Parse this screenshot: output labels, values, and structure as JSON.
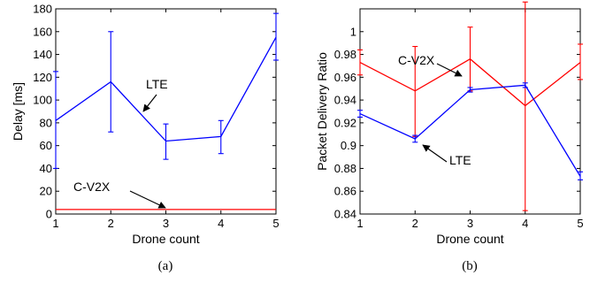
{
  "chart_data": [
    {
      "type": "line",
      "panel_label": "(a)",
      "xlabel": "Drone count",
      "ylabel": "Delay [ms]",
      "x": [
        1,
        2,
        3,
        4,
        5
      ],
      "xlim": [
        1,
        5
      ],
      "ylim": [
        0,
        180
      ],
      "xticks": [
        "1",
        "2",
        "3",
        "4",
        "5"
      ],
      "yticks": [
        "0",
        "20",
        "40",
        "60",
        "80",
        "100",
        "120",
        "140",
        "160",
        "180"
      ],
      "series": [
        {
          "name": "LTE",
          "color": "#0000ff",
          "values": [
            82,
            116,
            64,
            68,
            155
          ],
          "err_low": [
            40,
            72,
            48,
            53,
            135
          ],
          "err_high": [
            125,
            160,
            79,
            82,
            176
          ]
        },
        {
          "name": "C-V2X",
          "color": "#ff0000",
          "values": [
            4,
            4,
            4,
            4,
            4
          ]
        }
      ],
      "annotations": [
        "LTE",
        "C-V2X"
      ]
    },
    {
      "type": "line",
      "panel_label": "(b)",
      "xlabel": "Drone count",
      "ylabel": "Packet Delivery Ratio",
      "x": [
        1,
        2,
        3,
        4,
        5
      ],
      "xlim": [
        1,
        5
      ],
      "ylim": [
        0.84,
        1.02
      ],
      "xticks": [
        "1",
        "2",
        "3",
        "4",
        "5"
      ],
      "yticks": [
        "0.84",
        "0.86",
        "0.88",
        "0.9",
        "0.92",
        "0.94",
        "0.96",
        "0.98",
        "1"
      ],
      "series": [
        {
          "name": "C-V2X",
          "color": "#ff0000",
          "values": [
            0.973,
            0.948,
            0.976,
            0.935,
            0.973
          ],
          "err_low": [
            0.962,
            0.908,
            0.948,
            0.843,
            0.958
          ],
          "err_high": [
            0.984,
            0.987,
            1.004,
            1.026,
            0.989
          ]
        },
        {
          "name": "LTE",
          "color": "#0000ff",
          "values": [
            0.928,
            0.906,
            0.949,
            0.953,
            0.873
          ],
          "err_low": [
            0.925,
            0.903,
            0.947,
            0.951,
            0.87
          ],
          "err_high": [
            0.931,
            0.909,
            0.951,
            0.955,
            0.877
          ]
        }
      ],
      "annotations": [
        "C-V2X",
        "LTE"
      ]
    }
  ]
}
